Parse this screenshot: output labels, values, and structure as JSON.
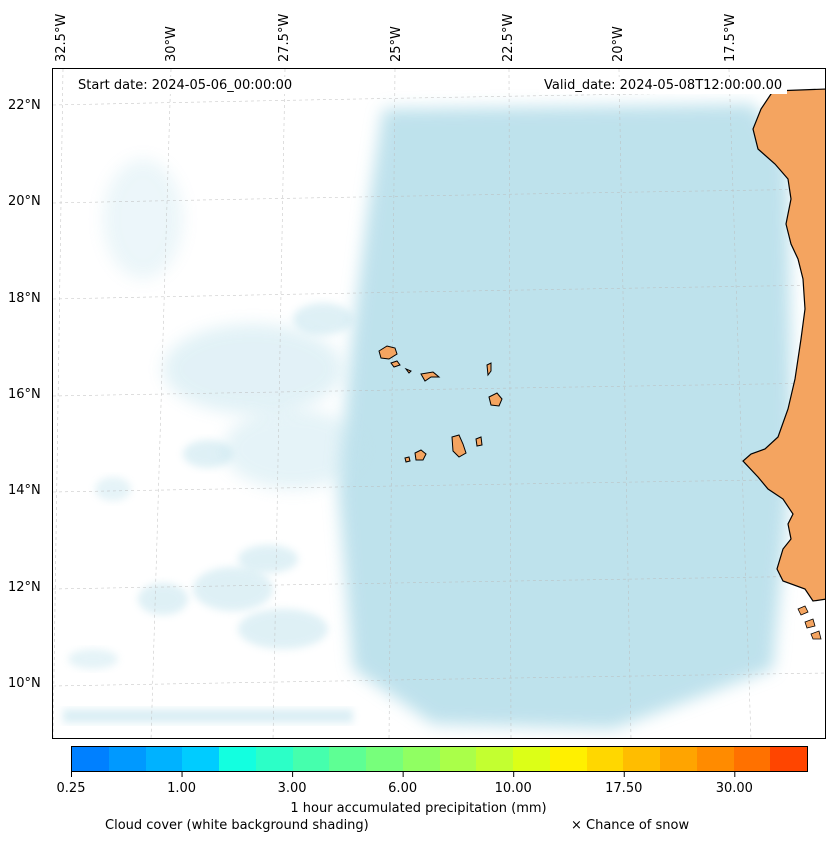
{
  "map": {
    "start_date": "Start date: 2024-05-06_00:00:00",
    "valid_date": "Valid_date: 2024-05-08T12:00:00.00",
    "longitude_labels": [
      "32.5°W",
      "30°W",
      "27.5°W",
      "25°W",
      "22.5°W",
      "20°W",
      "17.5°W"
    ],
    "latitude_labels": [
      "22°N",
      "20°N",
      "18°N",
      "16°N",
      "14°N",
      "12°N",
      "10°N"
    ],
    "ocean_color": "#ffffff",
    "cloud_color": "#a9d8e6",
    "land_color": "#f4a460",
    "coastline_color": "#000000"
  },
  "colorbar": {
    "title": "1 hour accumulated precipitation (mm)",
    "tick_labels": [
      "0.25",
      "1.00",
      "3.00",
      "6.00",
      "10.00",
      "17.50",
      "30.00"
    ],
    "colors": [
      "#0080ff",
      "#0099ff",
      "#00b2ff",
      "#00ccff",
      "#13ffe0",
      "#2cffc7",
      "#45ffad",
      "#5eff94",
      "#77ff7b",
      "#90ff62",
      "#aaff49",
      "#c3ff30",
      "#dcff17",
      "#fff000",
      "#ffd700",
      "#ffbd00",
      "#ffa400",
      "#ff8b00",
      "#ff7100",
      "#ff4500"
    ]
  },
  "legend": {
    "cloud_note": "Cloud cover (white background shading)",
    "snow_note": "× Chance of snow"
  }
}
